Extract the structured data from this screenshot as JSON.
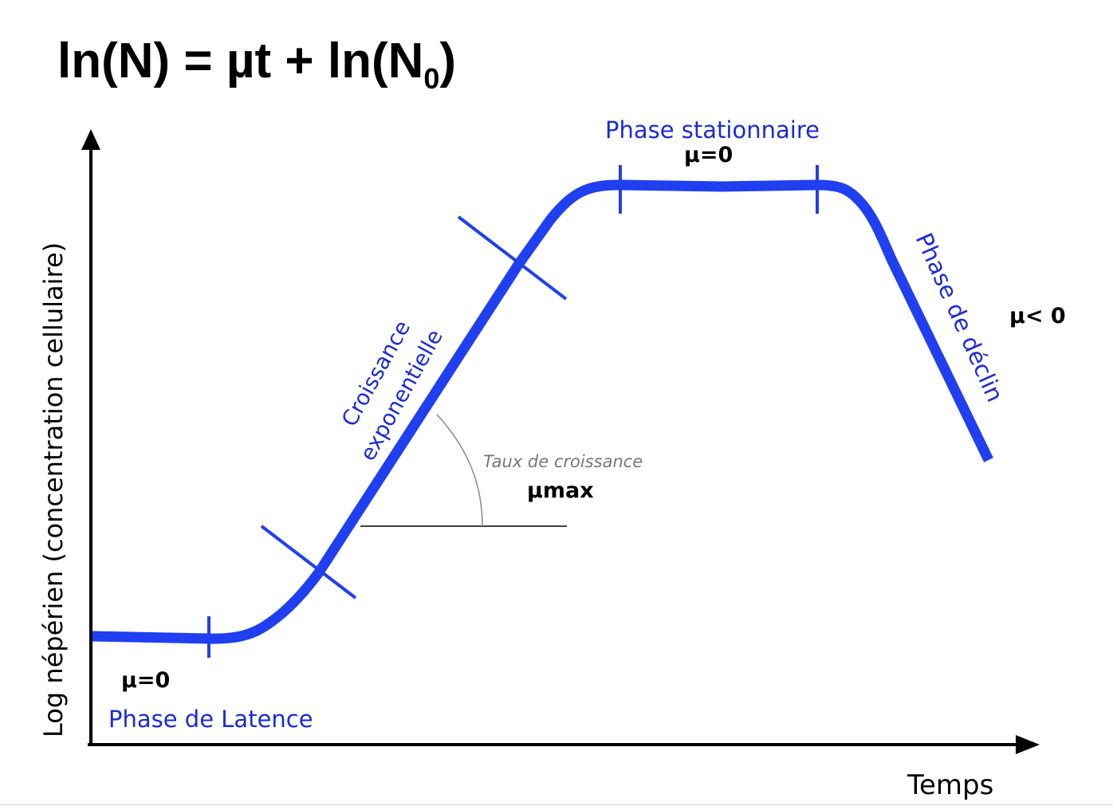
{
  "title": {
    "prefix": "ln(N) = µt + ln(N",
    "subscript": "0",
    "suffix": ")"
  },
  "axes": {
    "y_label": "Log népérien (concentration cellulaire)",
    "x_label": "Temps"
  },
  "phases": {
    "lag": {
      "name": "Phase de Latence",
      "mu": "µ=0"
    },
    "exponential": {
      "name_line1": "Croissance",
      "name_line2": "exponentielle"
    },
    "stationary": {
      "name": "Phase stationnaire",
      "mu": "µ=0"
    },
    "decline": {
      "name": "Phase de déclin",
      "mu": "µ< 0"
    }
  },
  "growth_rate": {
    "label": "Taux de croissance",
    "symbol": "µmax"
  },
  "colors": {
    "curve": "#1f3ff0",
    "label": "#1a2bd6",
    "axis": "#000000",
    "annotation": "#777777"
  }
}
